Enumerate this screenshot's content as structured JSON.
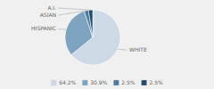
{
  "chart_data": {
    "type": "pie",
    "categories": [
      "WHITE",
      "HISPANIC",
      "ASIAN",
      "A.I."
    ],
    "values": [
      64.2,
      30.9,
      2.5,
      2.5
    ],
    "value_labels": [
      "64.2%",
      "30.9%",
      "2.5%",
      "2.5%"
    ],
    "colors": [
      "#cdd9e5",
      "#7da3be",
      "#4a7a9b",
      "#1e4d6b"
    ],
    "legend": "bottom"
  }
}
